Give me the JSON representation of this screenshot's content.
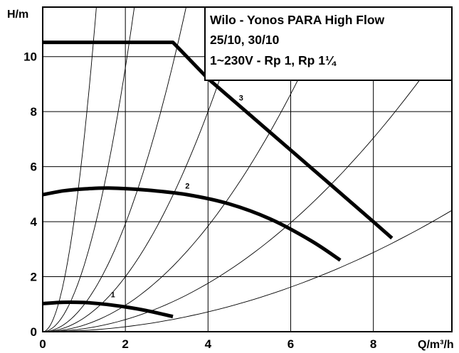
{
  "chart_data": {
    "type": "line",
    "title": [
      "Wilo - Yonos PARA High Flow",
      "25/10, 30/10",
      "1~230V - Rp 1, Rp 1¼"
    ],
    "xlabel": "Q/m³/h",
    "ylabel": "H/m",
    "xlim": [
      0,
      9.9
    ],
    "ylim": [
      0,
      11.8
    ],
    "x_ticks": [
      "0",
      "2",
      "4",
      "6",
      "8"
    ],
    "y_ticks": [
      "0",
      "2",
      "4",
      "6",
      "8",
      "10"
    ],
    "grid": true,
    "series": [
      {
        "name": "1",
        "x": [
          0,
          0.5,
          1.0,
          1.5,
          2.0,
          2.5,
          3.15
        ],
        "y": [
          1.02,
          1.07,
          1.06,
          1.0,
          0.9,
          0.77,
          0.55
        ]
      },
      {
        "name": "2",
        "x": [
          0,
          0.5,
          1.0,
          1.6,
          2.5,
          3.5,
          4.5,
          5.5,
          6.5,
          7.2
        ],
        "y": [
          4.98,
          5.12,
          5.19,
          5.22,
          5.15,
          4.98,
          4.65,
          4.1,
          3.3,
          2.6
        ]
      },
      {
        "name": "3",
        "x": [
          0,
          1.0,
          2.0,
          3.15,
          4.0,
          5.0,
          6.0,
          7.0,
          8.0,
          8.45
        ],
        "y": [
          10.52,
          10.52,
          10.52,
          10.52,
          9.2,
          7.9,
          6.6,
          5.3,
          4.0,
          3.4
        ]
      }
    ],
    "system_curves": {
      "k": [
        7.0,
        2.4,
        0.98,
        0.5,
        0.24,
        0.11,
        0.045
      ]
    },
    "curve_label_positions": [
      {
        "name": "1",
        "x": 1.7,
        "y": 1.25
      },
      {
        "name": "2",
        "x": 3.5,
        "y": 5.2
      },
      {
        "name": "3",
        "x": 4.8,
        "y": 8.4
      }
    ]
  }
}
